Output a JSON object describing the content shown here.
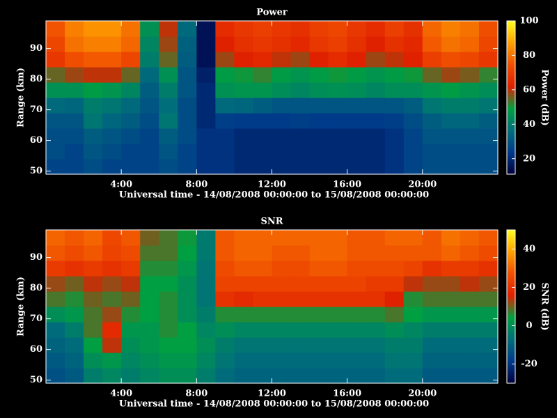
{
  "chart_data": [
    {
      "type": "heatmap",
      "title": "Power",
      "xlabel": "Universal time - 14/08/2008 00:00:00 to 15/08/2008 00:00:00",
      "ylabel": "Range (km)",
      "colorbar_label": "Power (dB)",
      "xbins": [
        0,
        1,
        2,
        3,
        4,
        5,
        6,
        7,
        8,
        9,
        10,
        11,
        12,
        13,
        14,
        15,
        16,
        17,
        18,
        19,
        20,
        21,
        22,
        23,
        24
      ],
      "ybins": [
        49,
        54,
        59,
        64,
        69,
        74,
        79,
        84,
        89,
        94,
        99
      ],
      "xlim": [
        0,
        24
      ],
      "ylim": [
        49,
        99
      ],
      "zlim": [
        11,
        100
      ],
      "xticks": [
        {
          "value": 4,
          "label": "4:00"
        },
        {
          "value": 8,
          "label": "8:00"
        },
        {
          "value": 12,
          "label": "12:00"
        },
        {
          "value": 16,
          "label": "16:00"
        },
        {
          "value": 20,
          "label": "20:00"
        }
      ],
      "yticks": [
        50,
        60,
        70,
        80,
        90
      ],
      "zticks": [
        20,
        40,
        60,
        80,
        100
      ],
      "colorscale": [
        "#00003c",
        "#003a8a",
        "#00707a",
        "#00a040",
        "#e02000",
        "#f05000",
        "#ffa000",
        "#ffff20"
      ],
      "values": [
        [
          26,
          26,
          28,
          26,
          26,
          26,
          28,
          26,
          22,
          22,
          20,
          20,
          20,
          20,
          20,
          20,
          20,
          20,
          22,
          26,
          28,
          28,
          28,
          28
        ],
        [
          28,
          26,
          30,
          28,
          26,
          26,
          30,
          26,
          22,
          22,
          20,
          20,
          20,
          20,
          20,
          20,
          20,
          20,
          22,
          26,
          28,
          28,
          28,
          28
        ],
        [
          28,
          28,
          32,
          30,
          28,
          26,
          32,
          28,
          22,
          22,
          20,
          20,
          20,
          20,
          20,
          20,
          20,
          20,
          22,
          26,
          30,
          30,
          30,
          30
        ],
        [
          30,
          30,
          38,
          34,
          32,
          28,
          38,
          28,
          20,
          25,
          24,
          24,
          24,
          25,
          24,
          24,
          24,
          24,
          25,
          28,
          32,
          34,
          34,
          32
        ],
        [
          35,
          34,
          40,
          38,
          35,
          30,
          36,
          28,
          20,
          35,
          34,
          32,
          30,
          30,
          30,
          30,
          30,
          30,
          30,
          32,
          38,
          40,
          40,
          38
        ],
        [
          45,
          45,
          48,
          46,
          42,
          32,
          40,
          30,
          20,
          45,
          46,
          46,
          44,
          42,
          44,
          45,
          44,
          42,
          44,
          44,
          46,
          48,
          46,
          44
        ],
        [
          55,
          58,
          60,
          60,
          55,
          35,
          45,
          30,
          18,
          48,
          50,
          52,
          48,
          46,
          48,
          50,
          48,
          46,
          48,
          50,
          55,
          58,
          56,
          52
        ],
        [
          68,
          74,
          76,
          76,
          72,
          40,
          55,
          32,
          15,
          58,
          62,
          64,
          60,
          58,
          62,
          65,
          62,
          58,
          60,
          62,
          70,
          74,
          72,
          68
        ],
        [
          72,
          80,
          82,
          82,
          78,
          42,
          58,
          33,
          15,
          62,
          66,
          68,
          66,
          64,
          68,
          70,
          66,
          62,
          66,
          64,
          76,
          80,
          78,
          72
        ],
        [
          75,
          82,
          85,
          85,
          80,
          45,
          60,
          35,
          15,
          65,
          68,
          70,
          68,
          66,
          70,
          72,
          68,
          65,
          70,
          66,
          78,
          82,
          80,
          74
        ]
      ]
    },
    {
      "type": "heatmap",
      "title": "SNR",
      "xlabel": "Universal time - 14/08/2008 00:00:00 to 15/08/2008 00:00:00",
      "ylabel": "Range (km)",
      "colorbar_label": "SNR (dB)",
      "xbins": [
        0,
        1,
        2,
        3,
        4,
        5,
        6,
        7,
        8,
        9,
        10,
        11,
        12,
        13,
        14,
        15,
        16,
        17,
        18,
        19,
        20,
        21,
        22,
        23,
        24
      ],
      "ybins": [
        49,
        54,
        59,
        64,
        69,
        74,
        79,
        84,
        89,
        94,
        99
      ],
      "xlim": [
        0,
        24
      ],
      "ylim": [
        49,
        99
      ],
      "zlim": [
        -30,
        50
      ],
      "xticks": [
        {
          "value": 4,
          "label": "4:00"
        },
        {
          "value": 8,
          "label": "8:00"
        },
        {
          "value": 12,
          "label": "12:00"
        },
        {
          "value": 16,
          "label": "16:00"
        },
        {
          "value": 20,
          "label": "20:00"
        }
      ],
      "yticks": [
        50,
        60,
        70,
        80,
        90
      ],
      "zticks": [
        -20,
        0,
        20,
        40
      ],
      "colorscale": [
        "#00003c",
        "#003a8a",
        "#00707a",
        "#00a040",
        "#e02000",
        "#f05000",
        "#ffa000",
        "#ffff20"
      ],
      "values": [
        [
          -14,
          -12,
          -4,
          -2,
          -4,
          -2,
          0,
          0,
          -4,
          -8,
          -10,
          -10,
          -10,
          -10,
          -10,
          -10,
          -10,
          -10,
          -8,
          -8,
          -12,
          -12,
          -12,
          -12
        ],
        [
          -12,
          -10,
          0,
          2,
          -2,
          0,
          2,
          2,
          -2,
          -6,
          -8,
          -8,
          -8,
          -8,
          -8,
          -8,
          -8,
          -8,
          -6,
          -6,
          -10,
          -10,
          -10,
          -10
        ],
        [
          -10,
          -8,
          4,
          14,
          0,
          2,
          4,
          4,
          0,
          -4,
          -6,
          -6,
          -6,
          -6,
          -6,
          -6,
          -6,
          -6,
          -4,
          -4,
          -8,
          -8,
          -8,
          -8
        ],
        [
          -8,
          -4,
          8,
          18,
          2,
          2,
          6,
          4,
          -2,
          0,
          -2,
          -2,
          -2,
          -2,
          -2,
          -2,
          -2,
          -2,
          0,
          -2,
          -4,
          -4,
          -4,
          -4
        ],
        [
          0,
          2,
          8,
          12,
          6,
          4,
          6,
          0,
          -4,
          6,
          6,
          6,
          6,
          6,
          6,
          6,
          6,
          6,
          8,
          4,
          2,
          2,
          2,
          2
        ],
        [
          8,
          6,
          10,
          8,
          10,
          4,
          6,
          0,
          -6,
          20,
          18,
          20,
          20,
          20,
          20,
          20,
          20,
          20,
          16,
          6,
          8,
          8,
          8,
          8
        ],
        [
          12,
          10,
          14,
          12,
          14,
          4,
          4,
          0,
          -6,
          24,
          24,
          24,
          24,
          24,
          24,
          24,
          24,
          22,
          22,
          14,
          12,
          12,
          14,
          12
        ],
        [
          22,
          20,
          22,
          20,
          22,
          6,
          6,
          2,
          -6,
          26,
          28,
          28,
          26,
          26,
          28,
          28,
          26,
          26,
          26,
          24,
          20,
          22,
          22,
          20
        ],
        [
          28,
          26,
          28,
          24,
          26,
          8,
          8,
          4,
          -5,
          28,
          30,
          30,
          28,
          28,
          30,
          30,
          28,
          28,
          28,
          28,
          28,
          30,
          28,
          26
        ],
        [
          30,
          28,
          30,
          25,
          28,
          10,
          8,
          5,
          -5,
          28,
          30,
          30,
          30,
          30,
          30,
          30,
          28,
          28,
          30,
          30,
          28,
          32,
          30,
          28
        ]
      ]
    }
  ]
}
